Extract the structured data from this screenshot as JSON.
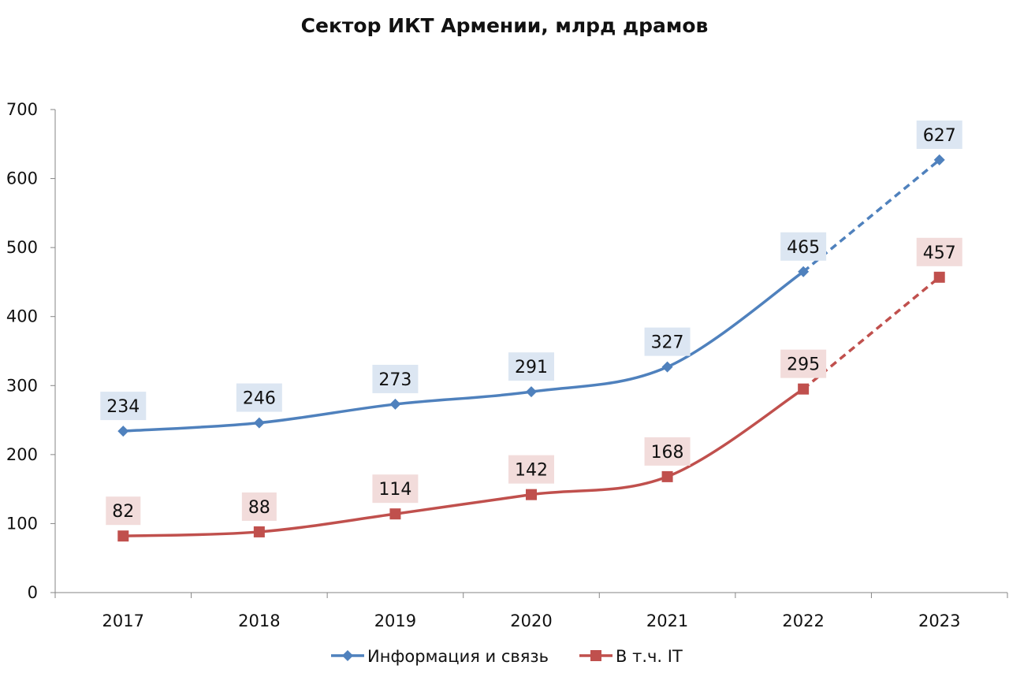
{
  "chart_data": {
    "type": "line",
    "title": "Сектор ИКТ Армении, млрд драмов",
    "xlabel": "",
    "ylabel": "",
    "categories": [
      "2017",
      "2018",
      "2019",
      "2020",
      "2021",
      "2022",
      "2023"
    ],
    "ylim": [
      0,
      700
    ],
    "yticks": [
      "0",
      "100",
      "200",
      "300",
      "400",
      "500",
      "600",
      "700"
    ],
    "grid": false,
    "legend_position": "bottom",
    "series": [
      {
        "name": "Информация и связь",
        "values": [
          234,
          246,
          273,
          291,
          327,
          465,
          627
        ],
        "labels": [
          "234",
          "246",
          "273",
          "291",
          "327",
          "465",
          "627"
        ],
        "color": "#4f81bd",
        "label_bg": "#dce6f2",
        "marker": "diamond",
        "dashed_from_index": 5
      },
      {
        "name": "В т.ч. IT",
        "values": [
          82,
          88,
          114,
          142,
          168,
          295,
          457
        ],
        "labels": [
          "82",
          "88",
          "114",
          "142",
          "168",
          "295",
          "457"
        ],
        "color": "#c0504d",
        "label_bg": "#f2dcdb",
        "marker": "square",
        "dashed_from_index": 5
      }
    ]
  }
}
